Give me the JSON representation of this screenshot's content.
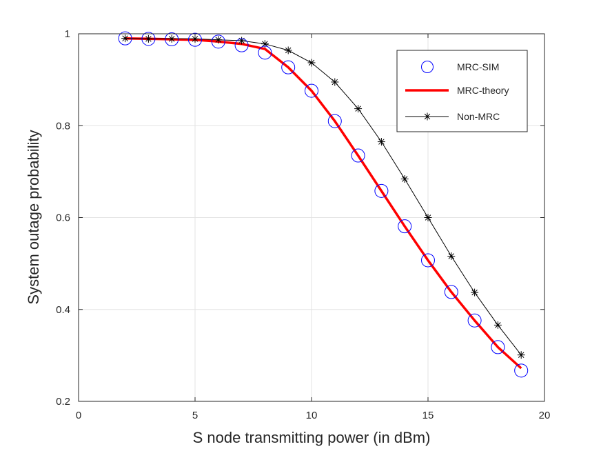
{
  "chart_data": {
    "type": "line",
    "xlabel": "S node transmitting power (in dBm)",
    "ylabel": "System outage probability",
    "xlim": [
      0,
      20
    ],
    "ylim": [
      0.2,
      1
    ],
    "xticks": [
      0,
      5,
      10,
      15,
      20
    ],
    "yticks": [
      0.2,
      0.4,
      0.6,
      0.8,
      1
    ],
    "xtick_labels": [
      "0",
      "5",
      "10",
      "15",
      "20"
    ],
    "ytick_labels": [
      "0.2",
      "0.4",
      "0.6",
      "0.8",
      "1"
    ],
    "grid": true,
    "legend_position": "top-right",
    "series": [
      {
        "name": "MRC-SIM",
        "style": "circle-markers",
        "color": "#0000ff",
        "x": [
          2,
          3,
          4,
          5,
          6,
          7,
          8,
          9,
          10,
          11,
          12,
          13,
          14,
          15,
          16,
          17,
          18,
          19
        ],
        "values": [
          0.99,
          0.989,
          0.988,
          0.987,
          0.983,
          0.975,
          0.959,
          0.927,
          0.876,
          0.81,
          0.735,
          0.658,
          0.581,
          0.507,
          0.438,
          0.376,
          0.318,
          0.267
        ]
      },
      {
        "name": "MRC-theory",
        "style": "thick-line",
        "color": "#ff0000",
        "x": [
          2,
          3,
          4,
          5,
          6,
          7,
          8,
          9,
          10,
          11,
          12,
          13,
          14,
          15,
          16,
          17,
          18,
          19
        ],
        "values": [
          0.99,
          0.989,
          0.988,
          0.987,
          0.983,
          0.978,
          0.967,
          0.927,
          0.876,
          0.81,
          0.735,
          0.658,
          0.581,
          0.507,
          0.438,
          0.376,
          0.318,
          0.272
        ]
      },
      {
        "name": "Non-MRC",
        "style": "line-asterisk",
        "color": "#000000",
        "x": [
          2,
          3,
          4,
          5,
          6,
          7,
          8,
          9,
          10,
          11,
          12,
          13,
          14,
          15,
          16,
          17,
          18,
          19
        ],
        "values": [
          0.99,
          0.989,
          0.989,
          0.989,
          0.987,
          0.985,
          0.978,
          0.964,
          0.937,
          0.895,
          0.837,
          0.765,
          0.684,
          0.6,
          0.516,
          0.437,
          0.366,
          0.301
        ]
      }
    ]
  }
}
